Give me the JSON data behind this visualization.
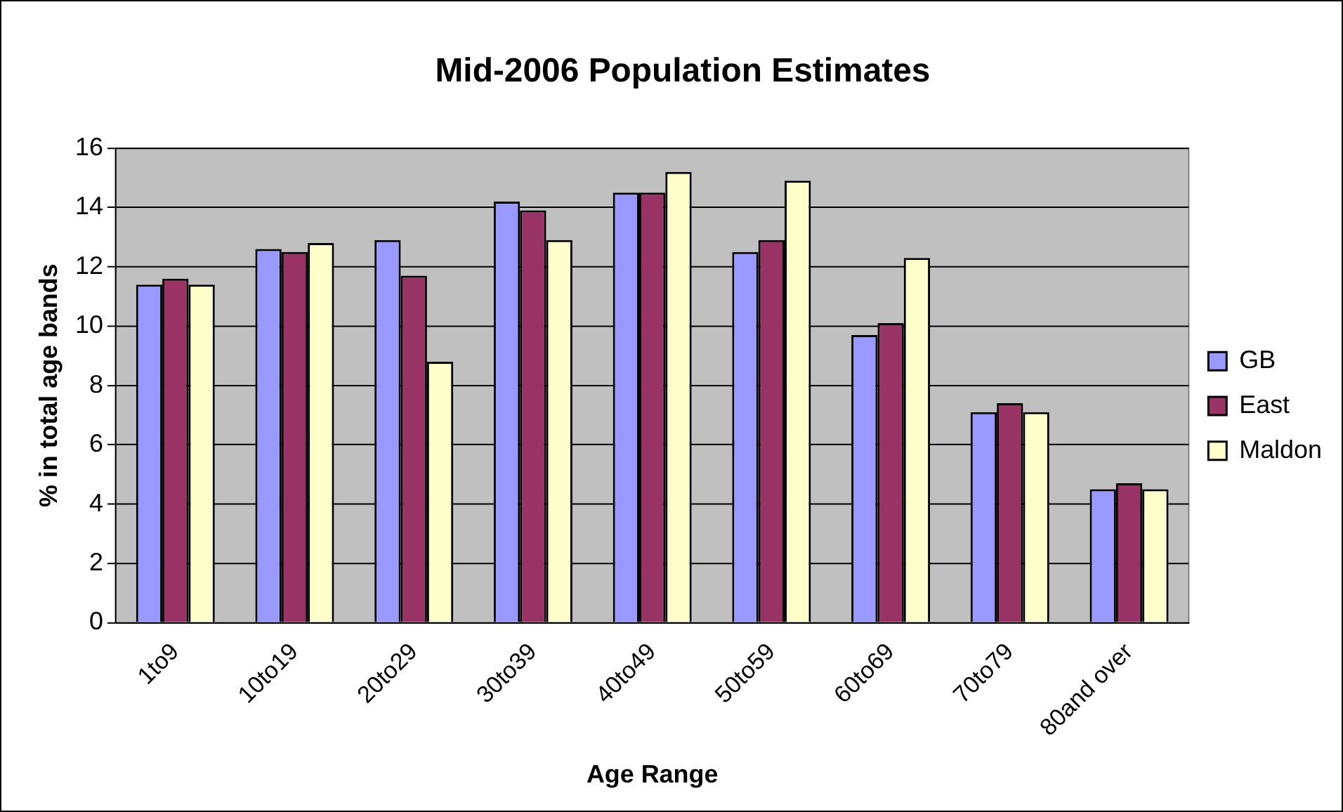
{
  "chart_data": {
    "type": "bar",
    "title": "Mid-2006 Population Estimates",
    "xlabel": "Age Range",
    "ylabel": "% in total age bands",
    "categories": [
      "1to9",
      "10to19",
      "20to29",
      "30to39",
      "40to49",
      "50to59",
      "60to69",
      "70to79",
      "80and over"
    ],
    "series": [
      {
        "name": "GB",
        "color": "#9999ff",
        "values": [
          11.4,
          12.6,
          12.9,
          14.2,
          14.5,
          12.5,
          9.7,
          7.1,
          4.5
        ]
      },
      {
        "name": "East",
        "color": "#993366",
        "values": [
          11.6,
          12.5,
          11.7,
          13.9,
          14.5,
          12.9,
          10.1,
          7.4,
          4.7
        ]
      },
      {
        "name": "Maldon",
        "color": "#ffffcc",
        "values": [
          11.4,
          12.8,
          8.8,
          12.9,
          15.2,
          14.9,
          12.3,
          7.1,
          4.5
        ]
      }
    ],
    "ylim": [
      0,
      16
    ],
    "yticks": [
      0,
      2,
      4,
      6,
      8,
      10,
      12,
      14,
      16
    ],
    "grid": "y",
    "legend": "right"
  }
}
